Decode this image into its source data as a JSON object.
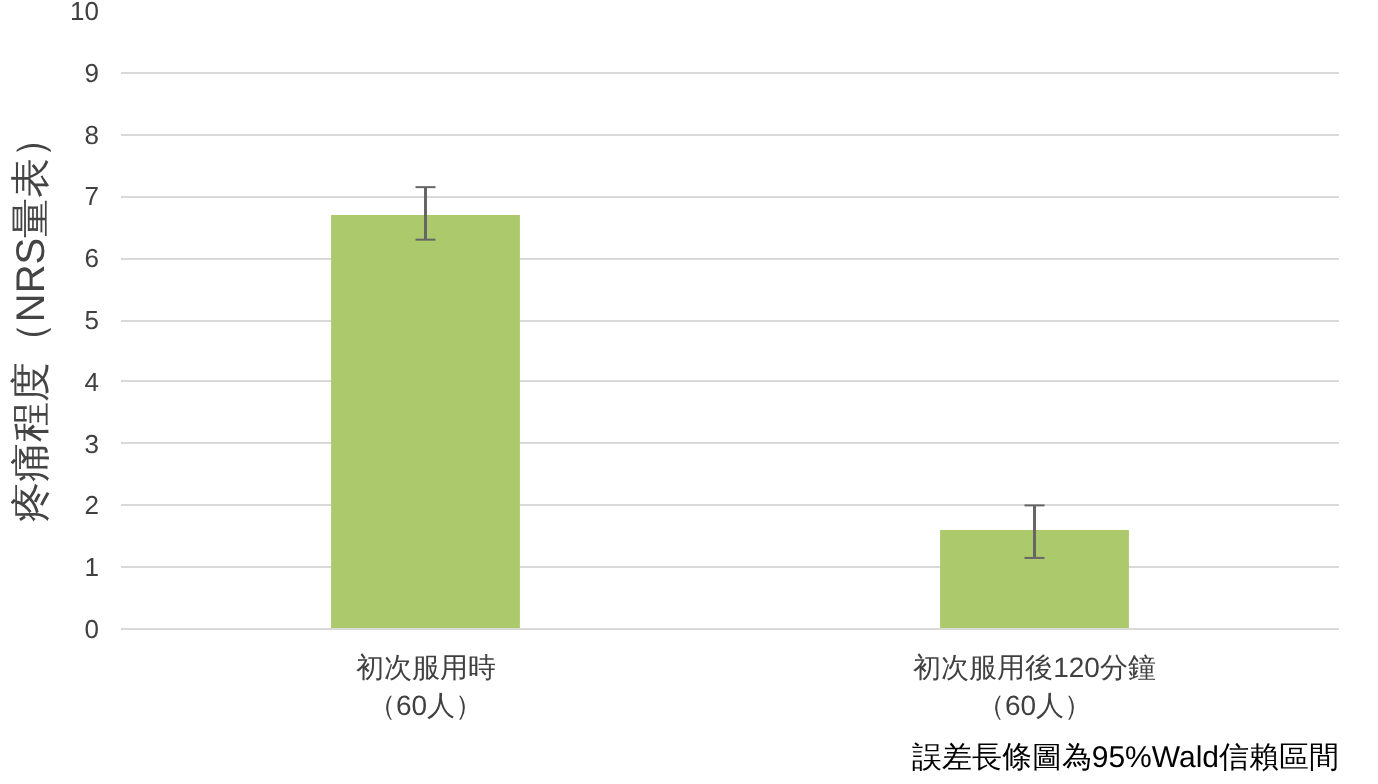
{
  "chart_data": {
    "type": "bar",
    "ylabel": "疼痛程度（NRS量表）",
    "categories": [
      "初次服用時（60人）",
      "初次服用後120分鐘（60人）"
    ],
    "values": [
      6.7,
      1.6
    ],
    "color": "#acca6b",
    "errors": [
      [
        6.3,
        7.15
      ],
      [
        1.15,
        2.0
      ]
    ],
    "ylim": [
      0,
      10
    ],
    "yticks": [
      0,
      1,
      2,
      3,
      4,
      5,
      6,
      7,
      8,
      9,
      10
    ],
    "grid": "y",
    "annotations": [
      "誤差長條圖為95%Wald信賴區間"
    ]
  }
}
